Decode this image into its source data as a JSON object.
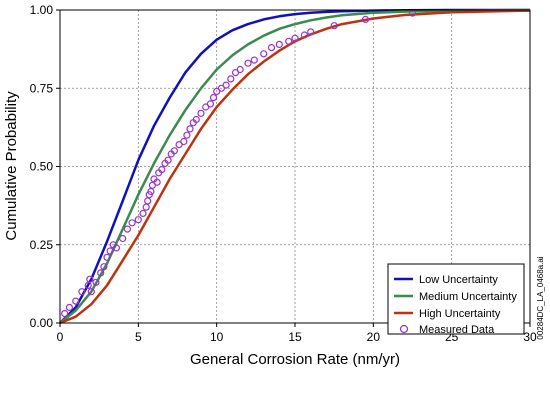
{
  "chart_data": {
    "type": "line",
    "xlabel": "General Corrosion Rate (nm/yr)",
    "ylabel": "Cumulative Probability",
    "xlim": [
      0,
      30
    ],
    "ylim": [
      0,
      1
    ],
    "x_ticks": [
      "0",
      "5",
      "10",
      "15",
      "20",
      "25",
      "30"
    ],
    "y_ticks": [
      "0.00",
      "0.25",
      "0.50",
      "0.75",
      "1.00"
    ],
    "grid": true,
    "legend_position": "bottom-right",
    "series": [
      {
        "name": "Low Uncertainty",
        "color": "#1111bb",
        "x": [
          0,
          1,
          2,
          3,
          4,
          5,
          6,
          7,
          8,
          9,
          10,
          11,
          12,
          13,
          14,
          15,
          16,
          17,
          18,
          20,
          22,
          25,
          30
        ],
        "y": [
          0,
          0.05,
          0.14,
          0.26,
          0.39,
          0.52,
          0.63,
          0.72,
          0.8,
          0.86,
          0.905,
          0.935,
          0.955,
          0.97,
          0.98,
          0.987,
          0.991,
          0.994,
          0.996,
          0.998,
          0.999,
          1.0,
          1.0
        ]
      },
      {
        "name": "Medium Uncertainty",
        "color": "#3b8a50",
        "x": [
          0,
          1,
          2,
          3,
          4,
          5,
          6,
          7,
          8,
          9,
          10,
          11,
          12,
          13,
          14,
          15,
          16,
          17,
          18,
          20,
          22,
          25,
          30
        ],
        "y": [
          0,
          0.04,
          0.1,
          0.19,
          0.3,
          0.41,
          0.51,
          0.6,
          0.68,
          0.75,
          0.81,
          0.855,
          0.89,
          0.918,
          0.94,
          0.955,
          0.967,
          0.976,
          0.983,
          0.991,
          0.995,
          0.998,
          1.0
        ]
      },
      {
        "name": "High Uncertainty",
        "color": "#bb3311",
        "x": [
          0,
          1,
          2,
          3,
          4,
          5,
          6,
          7,
          8,
          9,
          10,
          11,
          12,
          13,
          14,
          15,
          16,
          17,
          18,
          20,
          22,
          25,
          30
        ],
        "y": [
          0,
          0.02,
          0.06,
          0.12,
          0.2,
          0.28,
          0.37,
          0.46,
          0.54,
          0.62,
          0.69,
          0.745,
          0.795,
          0.835,
          0.87,
          0.9,
          0.922,
          0.94,
          0.955,
          0.973,
          0.984,
          0.993,
          0.998
        ]
      }
    ],
    "scatter": {
      "name": "Measured Data",
      "color": "#9933cc",
      "x": [
        0.3,
        0.6,
        1.0,
        1.4,
        1.8,
        1.9,
        2.0,
        2.3,
        2.6,
        2.8,
        3.0,
        3.2,
        3.4,
        3.6,
        4.0,
        4.3,
        4.6,
        5.0,
        5.3,
        5.5,
        5.6,
        5.7,
        5.8,
        5.9,
        6.0,
        6.2,
        6.3,
        6.5,
        6.7,
        6.9,
        7.1,
        7.3,
        7.6,
        7.9,
        8.1,
        8.3,
        8.5,
        8.7,
        9.0,
        9.3,
        9.6,
        9.8,
        10.0,
        10.3,
        10.6,
        10.9,
        11.2,
        11.5,
        12.0,
        12.4,
        13.0,
        13.5,
        14.0,
        14.6,
        15.0,
        15.6,
        16.0,
        17.5,
        19.5,
        22.5
      ],
      "y": [
        0.03,
        0.05,
        0.07,
        0.1,
        0.12,
        0.14,
        0.1,
        0.13,
        0.16,
        0.18,
        0.21,
        0.23,
        0.25,
        0.24,
        0.27,
        0.3,
        0.32,
        0.33,
        0.35,
        0.37,
        0.39,
        0.41,
        0.42,
        0.44,
        0.46,
        0.45,
        0.48,
        0.49,
        0.51,
        0.52,
        0.54,
        0.55,
        0.57,
        0.58,
        0.6,
        0.62,
        0.64,
        0.65,
        0.67,
        0.69,
        0.7,
        0.72,
        0.74,
        0.75,
        0.76,
        0.78,
        0.8,
        0.81,
        0.83,
        0.84,
        0.86,
        0.88,
        0.89,
        0.9,
        0.91,
        0.92,
        0.93,
        0.95,
        0.97,
        0.99
      ]
    },
    "side_note": "00284DC_LA_0468a.ai"
  }
}
